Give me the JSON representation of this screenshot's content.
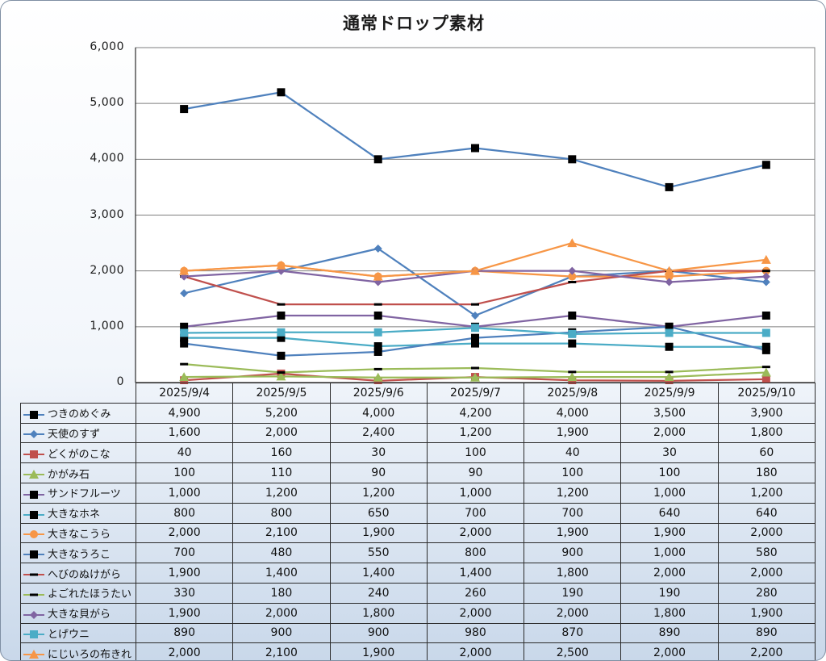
{
  "chart_data": {
    "type": "line",
    "title": "通常ドロップ素材",
    "xlabel": "",
    "ylabel": "",
    "ylim": [
      0,
      6000
    ],
    "yticks": [
      "0",
      "1,000",
      "2,000",
      "3,000",
      "4,000",
      "5,000",
      "6,000"
    ],
    "grid": true,
    "legend": "data-table",
    "categories": [
      "2025/9/4",
      "2025/9/5",
      "2025/9/6",
      "2025/9/7",
      "2025/9/8",
      "2025/9/9",
      "2025/9/10"
    ],
    "series": [
      {
        "name": "つきのめぐみ",
        "color": "#4f81bd",
        "marker": "square-black",
        "values": [
          4900,
          5200,
          4000,
          4200,
          4000,
          3500,
          3900
        ],
        "labels": [
          "4,900",
          "5,200",
          "4,000",
          "4,200",
          "4,000",
          "3,500",
          "3,900"
        ]
      },
      {
        "name": "天使のすず",
        "color": "#4f81bd",
        "marker": "diamond",
        "values": [
          1600,
          2000,
          2400,
          1200,
          1900,
          2000,
          1800
        ],
        "labels": [
          "1,600",
          "2,000",
          "2,400",
          "1,200",
          "1,900",
          "2,000",
          "1,800"
        ]
      },
      {
        "name": "どくがのこな",
        "color": "#c0504d",
        "marker": "square",
        "values": [
          40,
          160,
          30,
          100,
          40,
          30,
          60
        ],
        "labels": [
          "40",
          "160",
          "30",
          "100",
          "40",
          "30",
          "60"
        ]
      },
      {
        "name": "かがみ石",
        "color": "#9bbb59",
        "marker": "triangle",
        "values": [
          100,
          110,
          90,
          90,
          100,
          100,
          180
        ],
        "labels": [
          "100",
          "110",
          "90",
          "90",
          "100",
          "100",
          "180"
        ]
      },
      {
        "name": "サンドフルーツ",
        "color": "#8064a2",
        "marker": "square-black",
        "values": [
          1000,
          1200,
          1200,
          1000,
          1200,
          1000,
          1200
        ],
        "labels": [
          "1,000",
          "1,200",
          "1,200",
          "1,000",
          "1,200",
          "1,000",
          "1,200"
        ]
      },
      {
        "name": "大きなホネ",
        "color": "#4bacc6",
        "marker": "square-black",
        "values": [
          800,
          800,
          650,
          700,
          700,
          640,
          640
        ],
        "labels": [
          "800",
          "800",
          "650",
          "700",
          "700",
          "640",
          "640"
        ]
      },
      {
        "name": "大きなこうら",
        "color": "#f79646",
        "marker": "circle",
        "values": [
          2000,
          2100,
          1900,
          2000,
          1900,
          1900,
          2000
        ],
        "labels": [
          "2,000",
          "2,100",
          "1,900",
          "2,000",
          "1,900",
          "1,900",
          "2,000"
        ]
      },
      {
        "name": "大きなうろこ",
        "color": "#4f81bd",
        "marker": "square-black",
        "values": [
          700,
          480,
          550,
          800,
          900,
          1000,
          580
        ],
        "labels": [
          "700",
          "480",
          "550",
          "800",
          "900",
          "1,000",
          "580"
        ]
      },
      {
        "name": "へびのぬけがら",
        "color": "#c0504d",
        "marker": "dash-black",
        "values": [
          1900,
          1400,
          1400,
          1400,
          1800,
          2000,
          2000
        ],
        "labels": [
          "1,900",
          "1,400",
          "1,400",
          "1,400",
          "1,800",
          "2,000",
          "2,000"
        ]
      },
      {
        "name": "よごれたほうたい",
        "color": "#9bbb59",
        "marker": "dash-black",
        "values": [
          330,
          180,
          240,
          260,
          190,
          190,
          280
        ],
        "labels": [
          "330",
          "180",
          "240",
          "260",
          "190",
          "190",
          "280"
        ]
      },
      {
        "name": "大きな貝がら",
        "color": "#8064a2",
        "marker": "diamond",
        "values": [
          1900,
          2000,
          1800,
          2000,
          2000,
          1800,
          1900
        ],
        "labels": [
          "1,900",
          "2,000",
          "1,800",
          "2,000",
          "2,000",
          "1,800",
          "1,900"
        ]
      },
      {
        "name": "とげウニ",
        "color": "#4bacc6",
        "marker": "square",
        "values": [
          890,
          900,
          900,
          980,
          870,
          890,
          890
        ],
        "labels": [
          "890",
          "900",
          "900",
          "980",
          "870",
          "890",
          "890"
        ]
      },
      {
        "name": "にじいろの布きれ",
        "color": "#f79646",
        "marker": "triangle",
        "values": [
          2000,
          2100,
          1900,
          2000,
          2500,
          2000,
          2200
        ],
        "labels": [
          "2,000",
          "2,100",
          "1,900",
          "2,000",
          "2,500",
          "2,000",
          "2,200"
        ]
      }
    ]
  }
}
